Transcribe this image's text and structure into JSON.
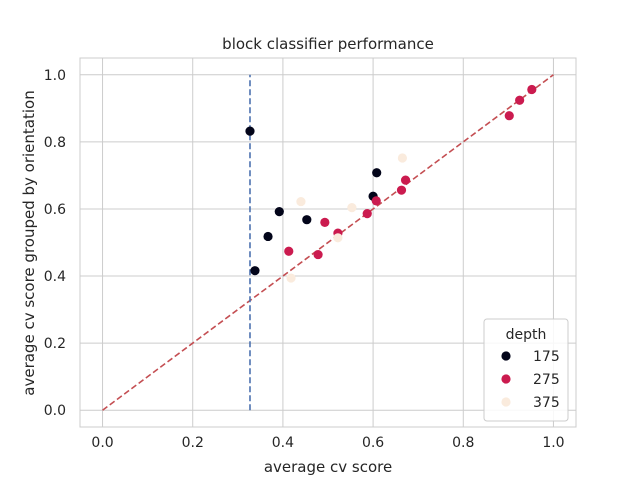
{
  "chart_data": {
    "type": "scatter",
    "title": "block classifier performance",
    "xlabel": "average cv score",
    "ylabel": "average cv score grouped by orientation",
    "xlim": [
      -0.05,
      1.05
    ],
    "ylim": [
      -0.05,
      1.05
    ],
    "xticks": [
      "0.0",
      "0.2",
      "0.4",
      "0.6",
      "0.8",
      "1.0"
    ],
    "yticks": [
      "0.0",
      "0.2",
      "0.4",
      "0.6",
      "0.8",
      "1.0"
    ],
    "grid": true,
    "legend": {
      "title": "depth",
      "placement": "lower-right"
    },
    "series": [
      {
        "name": "175",
        "color": "#03051a",
        "points": [
          [
            0.327,
            0.832
          ],
          [
            0.338,
            0.416
          ],
          [
            0.367,
            0.518
          ],
          [
            0.392,
            0.592
          ],
          [
            0.453,
            0.568
          ],
          [
            0.6,
            0.638
          ],
          [
            0.608,
            0.708
          ]
        ]
      },
      {
        "name": "275",
        "color": "#cb1b4f",
        "points": [
          [
            0.413,
            0.474
          ],
          [
            0.478,
            0.464
          ],
          [
            0.493,
            0.56
          ],
          [
            0.522,
            0.528
          ],
          [
            0.587,
            0.586
          ],
          [
            0.607,
            0.624
          ],
          [
            0.663,
            0.656
          ],
          [
            0.672,
            0.686
          ],
          [
            0.902,
            0.878
          ],
          [
            0.925,
            0.924
          ],
          [
            0.952,
            0.956
          ]
        ]
      },
      {
        "name": "375",
        "color": "#faebdd",
        "points": [
          [
            0.418,
            0.394
          ],
          [
            0.44,
            0.622
          ],
          [
            0.522,
            0.514
          ],
          [
            0.553,
            0.604
          ],
          [
            0.665,
            0.752
          ]
        ]
      }
    ],
    "reference_lines": [
      {
        "kind": "diagonal",
        "from": [
          0.0,
          0.0
        ],
        "to": [
          1.0,
          1.0
        ],
        "color": "#c44e52",
        "style": "dashed"
      },
      {
        "kind": "vertical",
        "x": 0.327,
        "from": 0.0,
        "to": 1.0,
        "color": "#4c72b0",
        "style": "dashed"
      }
    ]
  }
}
